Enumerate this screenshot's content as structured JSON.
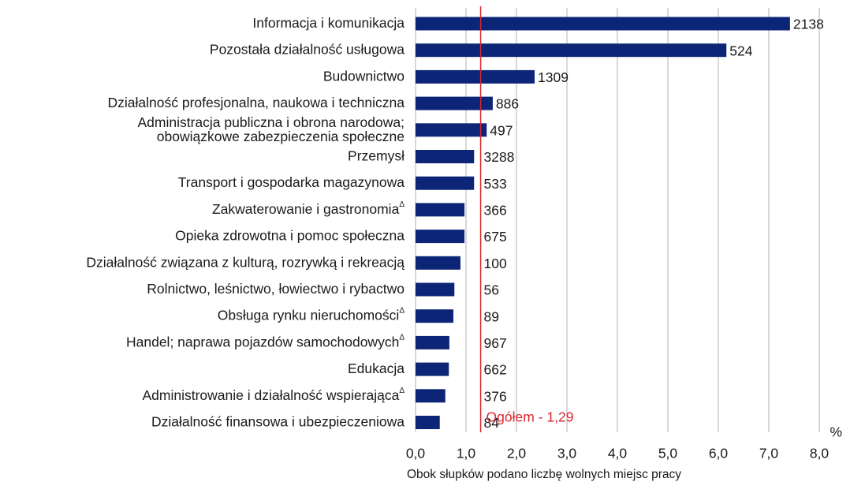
{
  "chart_data": {
    "type": "hbar",
    "categories": [
      "Informacja i komunikacja",
      "Pozostała działalność usługowa",
      "Budownictwo",
      "Działalność profesjonalna, naukowa i techniczna",
      [
        "Administracja publiczna i obrona narodowa;",
        "obowiązkowe zabezpieczenia społeczne"
      ],
      "Przemysł",
      "Transport i gospodarka magazynowa",
      "Zakwaterowanie i gastronomia",
      "Opieka zdrowotna i pomoc społeczna",
      "Działalność związana z kulturą, rozrywką i rekreacją",
      "Rolnictwo, leśnictwo, łowiectwo i rybactwo",
      "Obsługa rynku nieruchomości",
      "Handel; naprawa pojazdów samochodowych",
      "Edukacja",
      "Administrowanie i działalność wspierająca",
      "Działalność finansowa i ubezpieczeniowa"
    ],
    "values": [
      7.42,
      6.16,
      2.36,
      1.53,
      1.41,
      1.16,
      1.16,
      0.97,
      0.97,
      0.89,
      0.77,
      0.75,
      0.67,
      0.66,
      0.59,
      0.48
    ],
    "counts": [
      2138,
      524,
      1309,
      886,
      497,
      3288,
      533,
      366,
      675,
      100,
      56,
      89,
      967,
      662,
      376,
      84
    ],
    "footnote_mark": "Δ",
    "marked": [
      7,
      11,
      12,
      14
    ],
    "color": "#0c2577",
    "reference": {
      "value": 1.29,
      "label": "Ogółem - 1,29",
      "color": "#d9262e"
    },
    "xlim": [
      0,
      8
    ],
    "xticks": [
      {
        "value": 0,
        "label": "0,0"
      },
      {
        "value": 1,
        "label": "1,0"
      },
      {
        "value": 2,
        "label": "2,0"
      },
      {
        "value": 3,
        "label": "3,0"
      },
      {
        "value": 4,
        "label": "4,0"
      },
      {
        "value": 5,
        "label": "5,0"
      },
      {
        "value": 6,
        "label": "6,0"
      },
      {
        "value": 7,
        "label": "7,0"
      },
      {
        "value": 8,
        "label": "8,0"
      }
    ],
    "unit": "%",
    "note": "Obok słupków podano liczbę wolnych miejsc pracy",
    "grid": true
  }
}
